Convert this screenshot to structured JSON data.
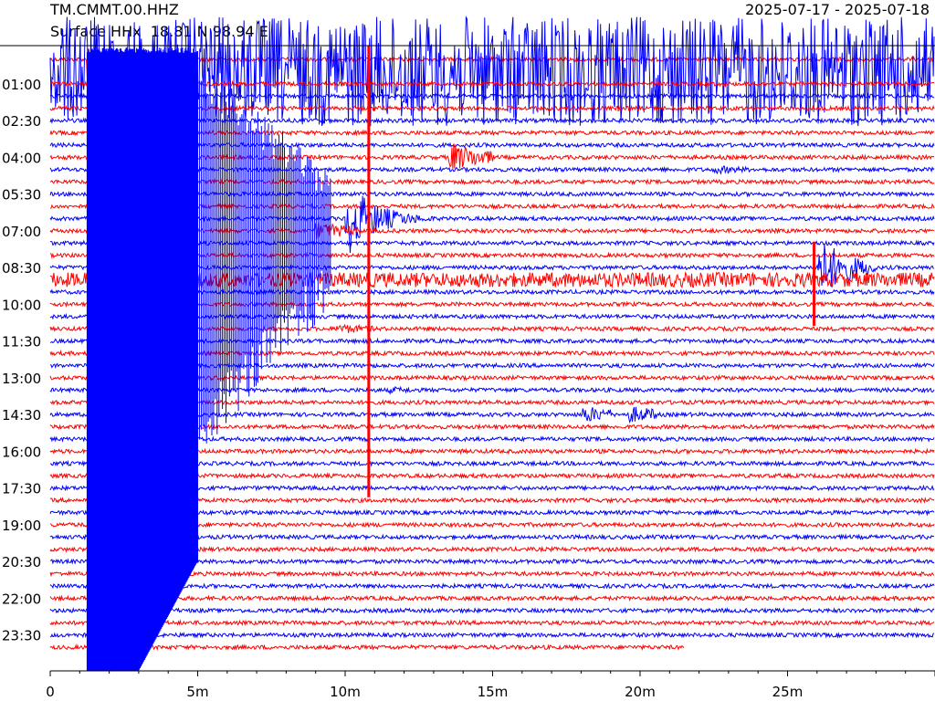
{
  "header": {
    "station": "TM.CMMT.00.HHZ",
    "subtitle": "Surface HHx  18.81 N 98.94 E",
    "date_range": "2025-07-17 - 2025-07-18"
  },
  "chart_data": {
    "type": "line",
    "title": "TM.CMMT.00.HHZ",
    "subtitle": "Surface HHx  18.81 N 98.94 E",
    "date_range": "2025-07-17 - 2025-07-18",
    "xlabel": "",
    "ylabel": "",
    "x_range_minutes": [
      0,
      30
    ],
    "x_ticks": [
      {
        "value": 0,
        "label": "0"
      },
      {
        "value": 5,
        "label": "5m"
      },
      {
        "value": 10,
        "label": "10m"
      },
      {
        "value": 15,
        "label": "15m"
      },
      {
        "value": 20,
        "label": "20m"
      },
      {
        "value": 25,
        "label": "25m"
      }
    ],
    "y_ticks": [
      {
        "hour": 1.0,
        "label": "01:00"
      },
      {
        "hour": 2.5,
        "label": "02:30"
      },
      {
        "hour": 4.0,
        "label": "04:00"
      },
      {
        "hour": 5.5,
        "label": "05:30"
      },
      {
        "hour": 7.0,
        "label": "07:00"
      },
      {
        "hour": 8.5,
        "label": "08:30"
      },
      {
        "hour": 10.0,
        "label": "10:00"
      },
      {
        "hour": 11.5,
        "label": "11:30"
      },
      {
        "hour": 13.0,
        "label": "13:00"
      },
      {
        "hour": 14.5,
        "label": "14:30"
      },
      {
        "hour": 16.0,
        "label": "16:00"
      },
      {
        "hour": 17.5,
        "label": "17:30"
      },
      {
        "hour": 19.0,
        "label": "19:00"
      },
      {
        "hour": 20.5,
        "label": "20:30"
      },
      {
        "hour": 22.0,
        "label": "22:00"
      },
      {
        "hour": 23.5,
        "label": "23:30"
      }
    ],
    "trace_count": 49,
    "trace_interval_minutes": 30,
    "first_trace_hour": 0.0,
    "last_trace_end_minute": 21.5,
    "trace_colors": [
      "#ff0000",
      "#0000ff"
    ],
    "grid": false,
    "events": [
      {
        "trace_hour": 0.0,
        "start_min": 1.25,
        "end_min": 5.0,
        "peak_amp": 40.0,
        "decay": 0.05,
        "color": "#0000ff",
        "note": "large quake onset"
      },
      {
        "trace_hour": 0.5,
        "start_min": 0.0,
        "end_min": 30.0,
        "peak_amp": 60.0,
        "decay": 0.0,
        "color": "#0000ff",
        "note": "saturated coda"
      },
      {
        "trace_hour": 4.0,
        "start_min": 13.5,
        "end_min": 15.0,
        "peak_amp": 18.0,
        "decay": 0.5,
        "color": "#ff0000",
        "note": "local event"
      },
      {
        "trace_hour": 6.5,
        "start_min": 10.0,
        "end_min": 13.0,
        "peak_amp": 45.0,
        "decay": 0.35,
        "color": "#ff0000",
        "note": "large local event"
      },
      {
        "trace_hour": 7.0,
        "start_min": 9.0,
        "end_min": 10.5,
        "peak_amp": 10.0,
        "decay": 0.6,
        "color": "#ff0000"
      },
      {
        "trace_hour": 8.5,
        "start_min": 26.0,
        "end_min": 28.0,
        "peak_amp": 35.0,
        "decay": 0.4,
        "color": "#ff0000",
        "note": "spike with coda"
      },
      {
        "trace_hour": 11.5,
        "start_min": 1.8,
        "end_min": 3.0,
        "peak_amp": 14.0,
        "decay": 0.6,
        "color": "#ff0000"
      },
      {
        "trace_hour": 14.5,
        "start_min": 18.0,
        "end_min": 19.0,
        "peak_amp": 10.0,
        "decay": 0.6,
        "color": "#0000ff"
      },
      {
        "trace_hour": 14.5,
        "start_min": 19.6,
        "end_min": 20.6,
        "peak_amp": 10.0,
        "decay": 0.6,
        "color": "#0000ff"
      },
      {
        "trace_hour": 9.0,
        "start_min": 0.0,
        "end_min": 30.0,
        "peak_amp": 8.0,
        "decay": 0.0,
        "color": "#0000ff",
        "note": "coda"
      },
      {
        "trace_hour": 4.5,
        "start_min": 22.5,
        "end_min": 23.8,
        "peak_amp": 5.0,
        "decay": 0.6,
        "color": "#0000ff"
      },
      {
        "trace_hour": 11.0,
        "start_min": 9.7,
        "end_min": 11.0,
        "peak_amp": 6.0,
        "decay": 0.6,
        "color": "#0000ff"
      },
      {
        "trace_hour": 13.5,
        "start_min": 11.5,
        "end_min": 12.3,
        "peak_amp": 4.0,
        "decay": 0.6,
        "color": "#0000ff"
      }
    ],
    "spike_lines": [
      {
        "minute": 10.8,
        "from_hour": 0.0,
        "to_hour": 17.5,
        "color": "#ff0000"
      },
      {
        "minute": 25.9,
        "from_hour": 8.0,
        "to_hour": 10.5,
        "color": "#ff0000"
      }
    ]
  }
}
